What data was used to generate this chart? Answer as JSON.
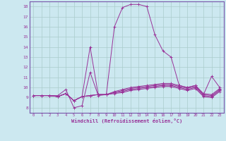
{
  "xlabel": "Windchill (Refroidissement éolien,°C)",
  "background_color": "#cce8f0",
  "grid_color": "#aacccc",
  "line_color": "#993399",
  "spine_color": "#7755aa",
  "xlim": [
    -0.5,
    23.5
  ],
  "ylim": [
    7.5,
    18.5
  ],
  "xticks": [
    0,
    1,
    2,
    3,
    4,
    5,
    6,
    7,
    8,
    9,
    10,
    11,
    12,
    13,
    14,
    15,
    16,
    17,
    18,
    19,
    20,
    21,
    22,
    23
  ],
  "yticks": [
    8,
    9,
    10,
    11,
    12,
    13,
    14,
    15,
    16,
    17,
    18
  ],
  "lines": [
    [
      9.2,
      9.2,
      9.2,
      9.2,
      9.8,
      8.0,
      8.2,
      11.5,
      9.2,
      9.3,
      16.0,
      17.9,
      18.2,
      18.2,
      18.0,
      15.2,
      13.6,
      13.0,
      10.2,
      10.0,
      10.2,
      9.3,
      11.1,
      10.0
    ],
    [
      9.2,
      9.2,
      9.2,
      9.1,
      9.4,
      8.7,
      9.1,
      14.0,
      9.3,
      9.3,
      9.6,
      9.8,
      10.0,
      10.1,
      10.2,
      10.3,
      10.4,
      10.4,
      10.2,
      10.0,
      10.2,
      9.4,
      9.3,
      9.9
    ],
    [
      9.2,
      9.2,
      9.2,
      9.1,
      9.4,
      8.7,
      9.1,
      9.2,
      9.3,
      9.3,
      9.5,
      9.7,
      9.9,
      10.0,
      10.1,
      10.2,
      10.3,
      10.3,
      10.1,
      9.9,
      10.1,
      9.3,
      9.2,
      9.8
    ],
    [
      9.2,
      9.2,
      9.2,
      9.1,
      9.4,
      8.7,
      9.1,
      9.2,
      9.3,
      9.3,
      9.5,
      9.6,
      9.8,
      9.9,
      10.0,
      10.1,
      10.2,
      10.2,
      10.0,
      9.8,
      10.0,
      9.2,
      9.1,
      9.7
    ],
    [
      9.2,
      9.2,
      9.2,
      9.1,
      9.4,
      8.7,
      9.1,
      9.2,
      9.3,
      9.3,
      9.4,
      9.5,
      9.7,
      9.8,
      9.9,
      10.0,
      10.1,
      10.1,
      9.9,
      9.7,
      9.9,
      9.1,
      9.0,
      9.6
    ]
  ]
}
